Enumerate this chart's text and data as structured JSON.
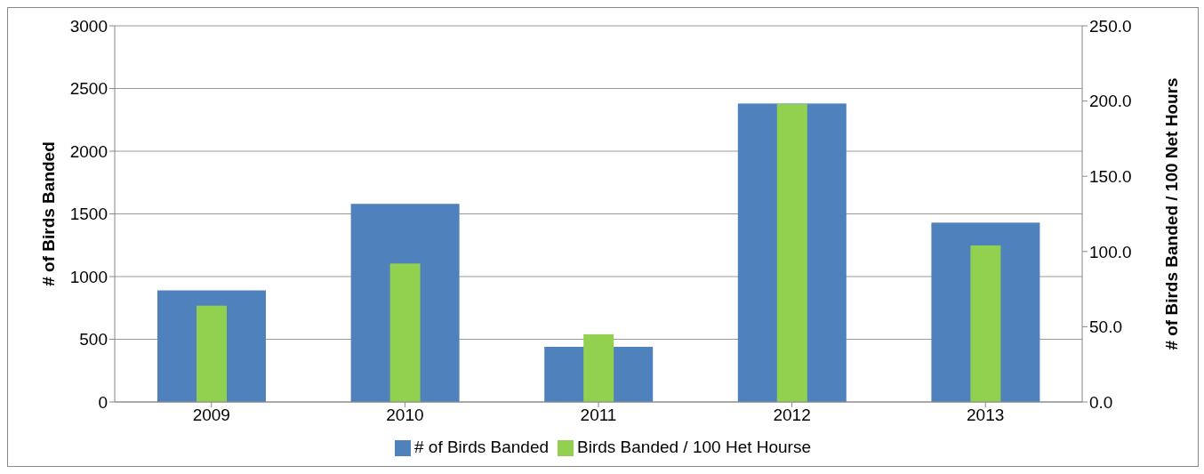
{
  "chart_data": {
    "type": "bar",
    "categories": [
      "2009",
      "2010",
      "2011",
      "2012",
      "2013"
    ],
    "ylabel": "# of Birds Banded",
    "y2label": "# of Birds Banded / 100 Net Hours",
    "series": [
      {
        "name": "# of Birds Banded",
        "color": "#4f81bd",
        "values": [
          890,
          1580,
          440,
          2380,
          1430
        ]
      },
      {
        "name": "Birds Banded / 100 Het Hourse",
        "color": "#92d050",
        "values": [
          64,
          92,
          45,
          198,
          104
        ],
        "axis": "y2"
      }
    ],
    "ylim": [
      0,
      3000
    ],
    "yticks": [
      0,
      500,
      1000,
      1500,
      2000,
      2500,
      3000
    ],
    "y2lim": [
      0,
      250
    ],
    "y2ticks": [
      {
        "value": 0,
        "label": "0.0"
      },
      {
        "value": 50,
        "label": "50.0"
      },
      {
        "value": 100,
        "label": "100.0"
      },
      {
        "value": 150,
        "label": "150.0"
      },
      {
        "value": 200,
        "label": "200.0"
      },
      {
        "value": 250,
        "label": "250.0"
      }
    ],
    "grid": "y",
    "legend": "bottom"
  }
}
